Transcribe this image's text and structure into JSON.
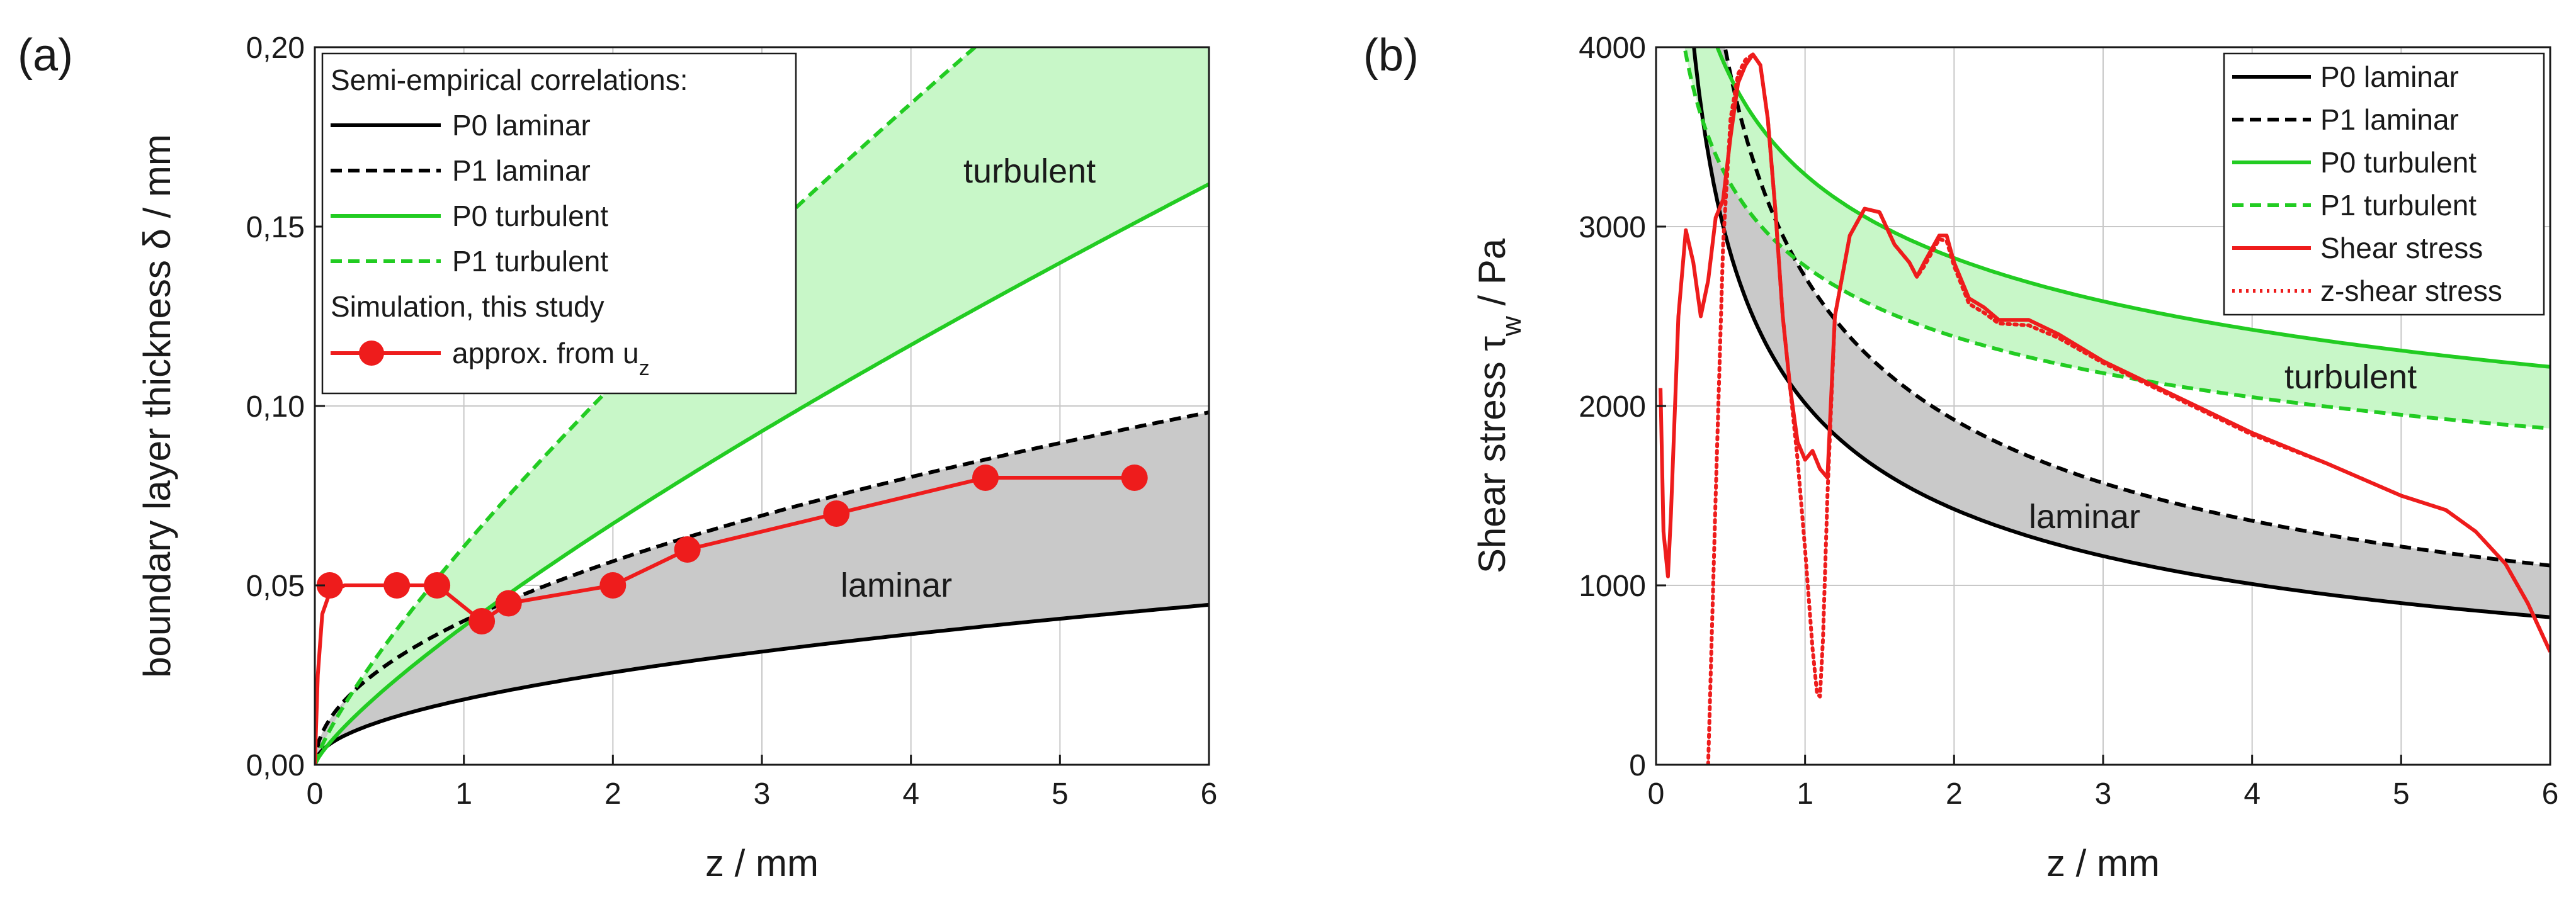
{
  "figure": {
    "panels": [
      "(a)",
      "(b)"
    ]
  },
  "chart_data": [
    {
      "type": "line",
      "panel": "(a)",
      "title": "",
      "xlabel": "z / mm",
      "ylabel": "boundary layer thickness δ / mm",
      "xlim": [
        0,
        6
      ],
      "ylim": [
        0,
        0.2
      ],
      "xticks": [
        "0",
        "1",
        "2",
        "3",
        "4",
        "5",
        "6"
      ],
      "yticks": [
        "0,00",
        "0,05",
        "0,10",
        "0,15",
        "0,20"
      ],
      "grid": true,
      "legend": {
        "placement": "top-left",
        "header1": "Semi-empirical correlations:",
        "header2": "Simulation, this study",
        "entries": [
          "P0 laminar",
          "P1 laminar",
          "P0 turbulent",
          "P1 turbulent"
        ],
        "sim_entry": "approx. from u",
        "sim_entry_sub": "z"
      },
      "region_labels": [
        "turbulent",
        "laminar"
      ],
      "series": [
        {
          "name": "P0 laminar",
          "color": "#000000",
          "dash": "solid",
          "model": "power",
          "a": 0.0182,
          "p": 0.5
        },
        {
          "name": "P1 laminar",
          "color": "#000000",
          "dash": "dashed",
          "model": "power",
          "a": 0.0401,
          "p": 0.5
        },
        {
          "name": "P0 turbulent",
          "color": "#22cc22",
          "dash": "solid",
          "model": "power",
          "a": 0.0386,
          "p": 0.8
        },
        {
          "name": "P1 turbulent",
          "color": "#22cc22",
          "dash": "dashed",
          "model": "power",
          "a": 0.0608,
          "p": 0.8
        }
      ],
      "bands": [
        {
          "between": [
            "P0 laminar",
            "P1 laminar"
          ],
          "color": "#c9c9c9"
        },
        {
          "between": [
            "P0 turbulent",
            "P1 turbulent"
          ],
          "color": "#c8f7c8"
        }
      ],
      "markers": {
        "name": "approx. from u_z",
        "color": "#ee1c1c",
        "x": [
          0.1,
          0.55,
          0.82,
          1.12,
          1.3,
          2.0,
          2.5,
          3.5,
          4.5,
          5.5
        ],
        "y": [
          0.05,
          0.05,
          0.05,
          0.04,
          0.045,
          0.05,
          0.06,
          0.07,
          0.08,
          0.08
        ],
        "curve_x": [
          0.0,
          0.02,
          0.05,
          0.1,
          0.15,
          0.2,
          0.3,
          0.55,
          0.82,
          1.12,
          1.3,
          2.0,
          2.5,
          3.5,
          4.5,
          5.0,
          5.5
        ],
        "curve_y": [
          0.0,
          0.025,
          0.042,
          0.048,
          0.049,
          0.05,
          0.05,
          0.05,
          0.05,
          0.04,
          0.045,
          0.05,
          0.06,
          0.07,
          0.08,
          0.08,
          0.08
        ]
      }
    },
    {
      "type": "line",
      "panel": "(b)",
      "title": "",
      "xlabel": "z / mm",
      "ylabel": "Shear stress τ",
      "ylabel_sub": "w",
      "ylabel_unit": " / Pa",
      "xlim": [
        0,
        6
      ],
      "ylim": [
        0,
        4000
      ],
      "xticks": [
        "0",
        "1",
        "2",
        "3",
        "4",
        "5",
        "6"
      ],
      "yticks": [
        "0",
        "1000",
        "2000",
        "3000",
        "4000"
      ],
      "grid": true,
      "legend": {
        "placement": "top-right",
        "entries": [
          "P0 laminar",
          "P1 laminar",
          "P0 turbulent",
          "P1 turbulent",
          "Shear stress",
          "z-shear stress"
        ]
      },
      "region_labels": [
        "turbulent",
        "laminar"
      ],
      "series": [
        {
          "name": "P0 laminar",
          "color": "#000000",
          "dash": "solid",
          "model": "power",
          "a": 2015,
          "p": -0.5
        },
        {
          "name": "P1 laminar",
          "color": "#000000",
          "dash": "dashed",
          "model": "power",
          "a": 2720,
          "p": -0.5
        },
        {
          "name": "P0 turbulent",
          "color": "#22cc22",
          "dash": "solid",
          "model": "power",
          "a": 3290,
          "p": -0.22
        },
        {
          "name": "P1 turbulent",
          "color": "#22cc22",
          "dash": "dashed",
          "model": "power",
          "a": 2780,
          "p": -0.22
        },
        {
          "name": "Shear stress",
          "color": "#ee1c1c",
          "dash": "solid",
          "model": "points",
          "x": [
            0.03,
            0.05,
            0.08,
            0.1,
            0.15,
            0.2,
            0.25,
            0.3,
            0.35,
            0.4,
            0.45,
            0.5,
            0.55,
            0.6,
            0.65,
            0.7,
            0.75,
            0.8,
            0.85,
            0.9,
            0.95,
            1.0,
            1.05,
            1.1,
            1.15,
            1.2,
            1.3,
            1.4,
            1.5,
            1.6,
            1.7,
            1.75,
            1.8,
            1.9,
            1.95,
            2.0,
            2.1,
            2.2,
            2.3,
            2.5,
            2.7,
            3.0,
            3.5,
            4.0,
            4.5,
            5.0,
            5.3,
            5.5,
            5.7,
            5.85,
            6.0
          ],
          "y": [
            2100,
            1300,
            1050,
            1400,
            2500,
            2980,
            2800,
            2500,
            2700,
            3050,
            3150,
            3500,
            3800,
            3900,
            3960,
            3900,
            3600,
            3100,
            2500,
            2100,
            1800,
            1700,
            1750,
            1650,
            1600,
            2500,
            2950,
            3100,
            3080,
            2900,
            2800,
            2720,
            2800,
            2950,
            2950,
            2800,
            2600,
            2550,
            2480,
            2480,
            2400,
            2250,
            2050,
            1850,
            1680,
            1500,
            1420,
            1300,
            1120,
            900,
            630
          ]
        },
        {
          "name": "z-shear stress",
          "color": "#ee1c1c",
          "dash": "dotted",
          "model": "points",
          "x": [
            0.35,
            0.4,
            0.45,
            0.5,
            0.55,
            0.6,
            0.65,
            0.7,
            0.75,
            0.8,
            0.85,
            0.9,
            0.95,
            1.0,
            1.05,
            1.08,
            1.1,
            1.12,
            1.15,
            1.2,
            1.3,
            1.4,
            1.5,
            1.6,
            1.7,
            1.75,
            1.8,
            1.9,
            1.95,
            2.0,
            2.1,
            2.2,
            2.3,
            2.5,
            2.7,
            3.0,
            3.5,
            4.0,
            4.5,
            5.0,
            5.3,
            5.5,
            5.7,
            5.85,
            6.0
          ],
          "y": [
            0,
            1500,
            2900,
            3600,
            3850,
            3930,
            3960,
            3900,
            3600,
            3100,
            2500,
            2100,
            1700,
            1200,
            650,
            400,
            380,
            700,
            1500,
            2500,
            2950,
            3100,
            3080,
            2900,
            2800,
            2720,
            2780,
            2930,
            2920,
            2780,
            2570,
            2520,
            2460,
            2450,
            2380,
            2240,
            2040,
            1840,
            1680,
            1500,
            1420,
            1300,
            1120,
            900,
            630
          ]
        }
      ],
      "bands": [
        {
          "between": [
            "P0 laminar",
            "P1 laminar"
          ],
          "color": "#c9c9c9"
        },
        {
          "between": [
            "P0 turbulent",
            "P1 turbulent"
          ],
          "color": "#c8f7c8"
        }
      ]
    }
  ]
}
